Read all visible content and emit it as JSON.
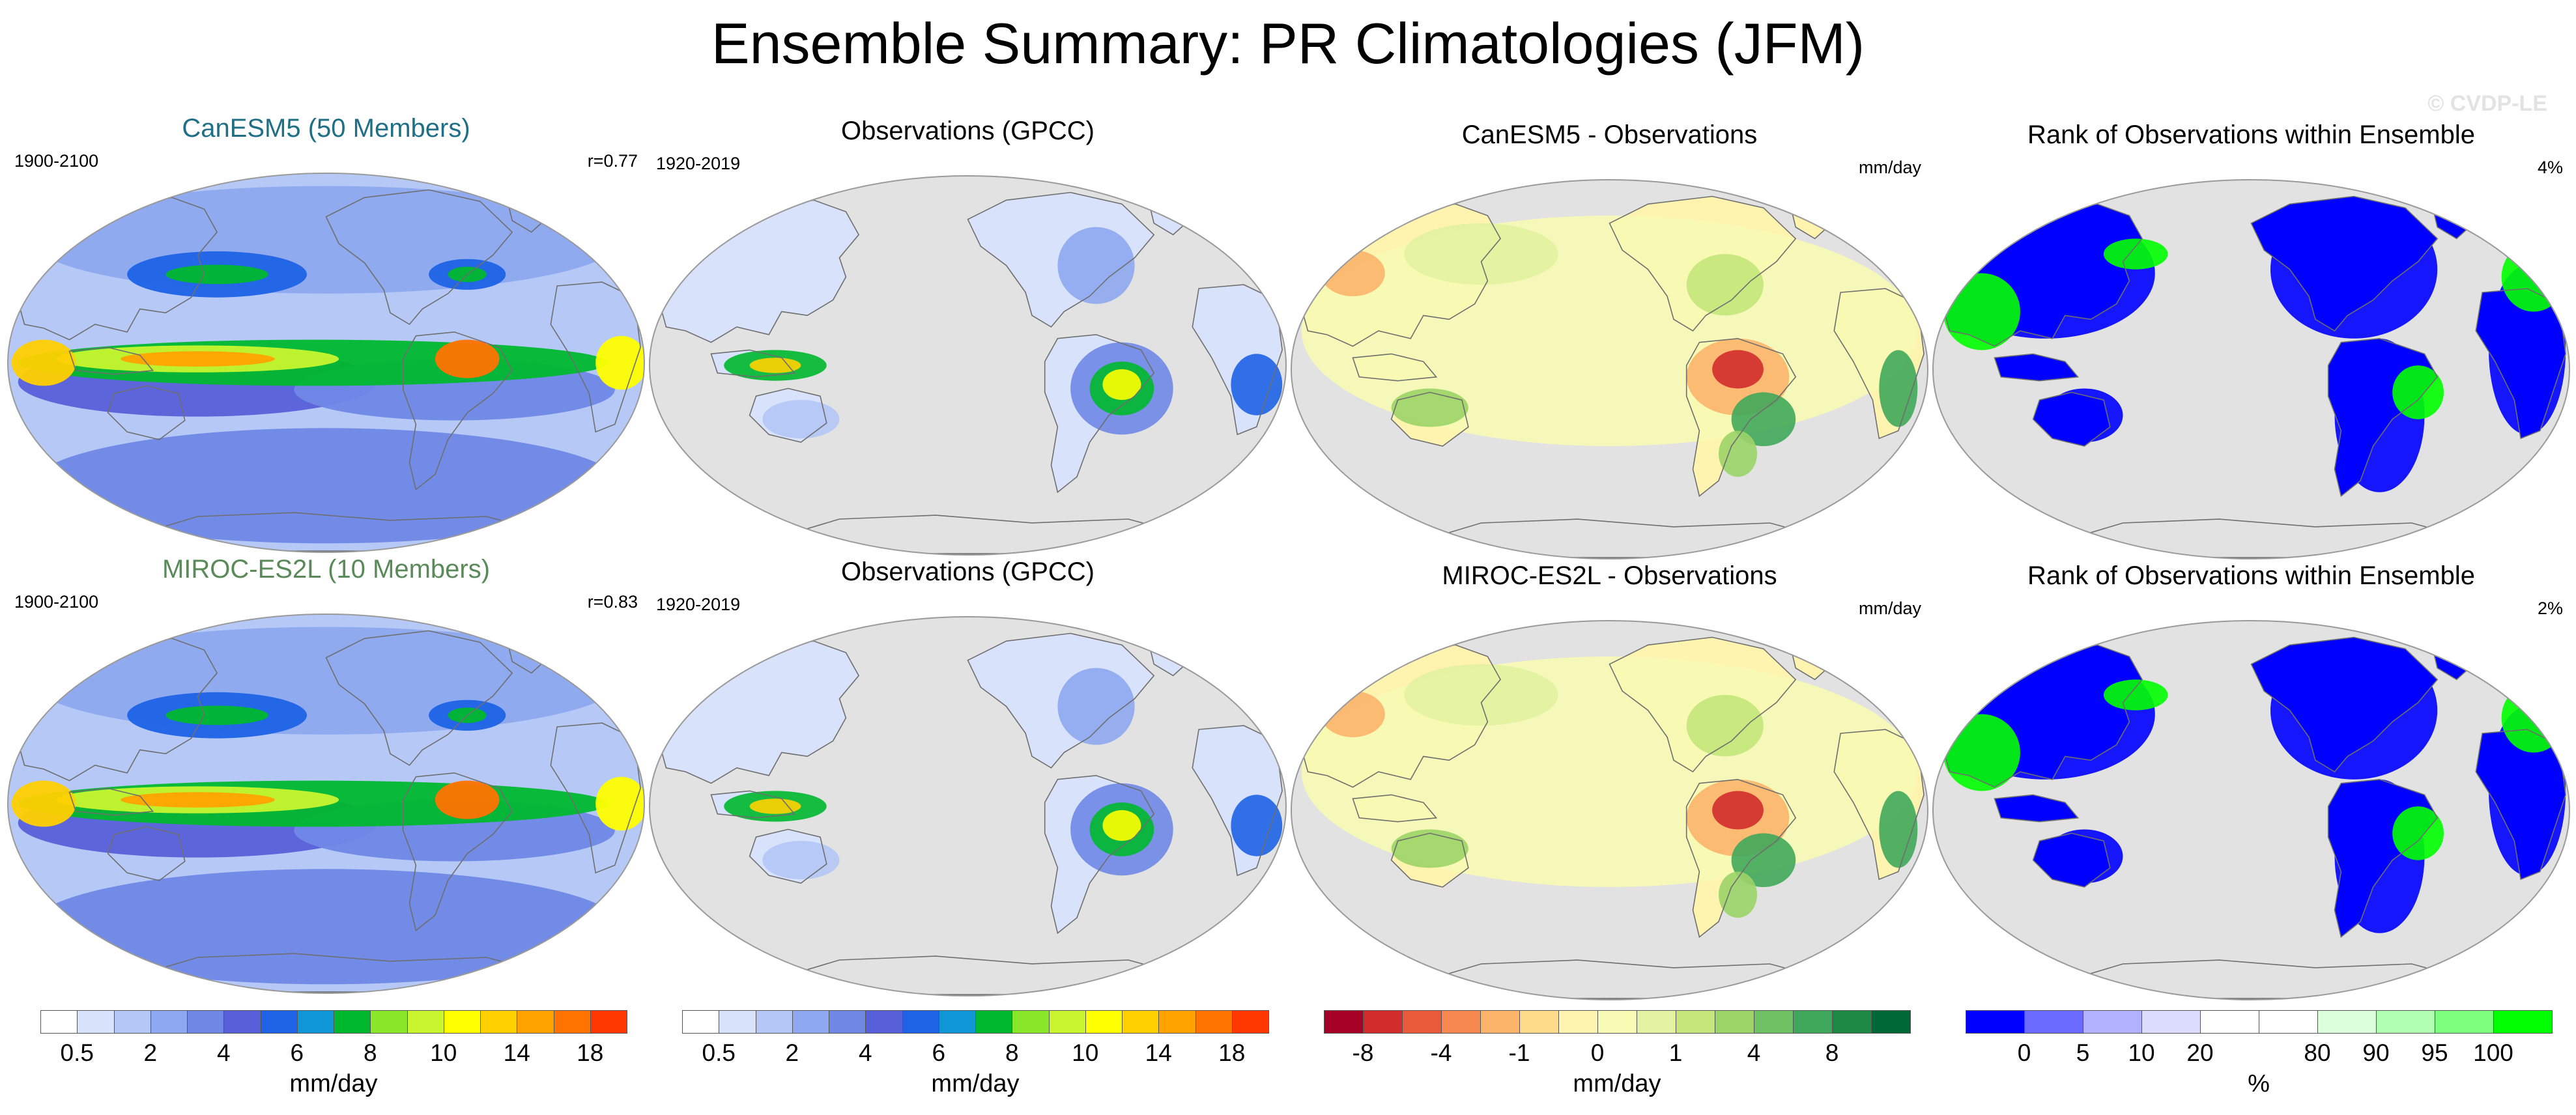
{
  "title": "Ensemble Summary: PR Climatologies (JFM)",
  "watermark": "© CVDP-LE",
  "colors": {
    "land": "#e2e2e2",
    "coast": "#6e6e6e",
    "precip": [
      "#ffffff",
      "#d8e2fb",
      "#b4c7f6",
      "#8ea9ef",
      "#6f88e6",
      "#5760d8",
      "#1e63e6",
      "#0f96d7",
      "#00b82e",
      "#8ae629",
      "#c8f52e",
      "#ffff00",
      "#ffd000",
      "#ffa200",
      "#ff7300",
      "#ff3800"
    ],
    "diff": [
      "#a50026",
      "#d02c2c",
      "#e95a3b",
      "#f6874f",
      "#fbb46a",
      "#fdd98a",
      "#fff3b0",
      "#f7fbb4",
      "#e2f2a0",
      "#c3e57a",
      "#9bd467",
      "#6fc164",
      "#40a85a",
      "#1c8844",
      "#006837"
    ],
    "rank": [
      "#0000ff",
      "#6a6aff",
      "#b1b1ff",
      "#dcdcff",
      "#ffffff",
      "#ffffff",
      "#dcffdc",
      "#b1ffb1",
      "#7dff7d",
      "#00ff00"
    ]
  },
  "panels": [
    {
      "title": "CanESM5 (50 Members)",
      "title_color": "#1f6f86",
      "years": "1900-2100",
      "corner": "r=0.77",
      "kind": "model"
    },
    {
      "title": "Observations (GPCC)",
      "title_color": "#000000",
      "years": "1920-2019",
      "corner": "",
      "kind": "obs"
    },
    {
      "title": "CanESM5 - Observations",
      "title_color": "#000000",
      "years": "",
      "corner": "mm/day",
      "kind": "diff"
    },
    {
      "title": "Rank of Observations within Ensemble",
      "title_color": "#000000",
      "years": "",
      "corner": "4%",
      "kind": "rank"
    },
    {
      "title": "MIROC-ES2L (10 Members)",
      "title_color": "#5a8a5a",
      "years": "1900-2100",
      "corner": "r=0.83",
      "kind": "model"
    },
    {
      "title": "Observations (GPCC)",
      "title_color": "#000000",
      "years": "1920-2019",
      "corner": "",
      "kind": "obs"
    },
    {
      "title": "MIROC-ES2L - Observations",
      "title_color": "#000000",
      "years": "",
      "corner": "mm/day",
      "kind": "diff"
    },
    {
      "title": "Rank of Observations within Ensemble",
      "title_color": "#000000",
      "years": "",
      "corner": "2%",
      "kind": "rank"
    }
  ],
  "colorbars": [
    {
      "palette": "precip",
      "ticks": [
        "0.5",
        "2",
        "4",
        "6",
        "8",
        "10",
        "14",
        "18"
      ],
      "tick_after_box": [
        1,
        3,
        5,
        7,
        9,
        11,
        13,
        15
      ],
      "label": "mm/day"
    },
    {
      "palette": "precip",
      "ticks": [
        "0.5",
        "2",
        "4",
        "6",
        "8",
        "10",
        "14",
        "18"
      ],
      "tick_after_box": [
        1,
        3,
        5,
        7,
        9,
        11,
        13,
        15
      ],
      "label": "mm/day"
    },
    {
      "palette": "diff",
      "ticks": [
        "-8",
        "-4",
        "-1",
        "0",
        "1",
        "4",
        "8"
      ],
      "tick_after_box": [
        1,
        3,
        5,
        7,
        9,
        11,
        13
      ],
      "label": "mm/day"
    },
    {
      "palette": "rank",
      "ticks": [
        "0",
        "5",
        "10",
        "20",
        "80",
        "90",
        "95",
        "100"
      ],
      "tick_after_box": [
        1,
        2,
        3,
        4,
        6,
        7,
        8,
        9
      ],
      "label": "%"
    }
  ],
  "chart_data": [
    {
      "type": "heatmap",
      "title": "Ensemble Summary: PR Climatologies (JFM)",
      "subplots": [
        {
          "title": "CanESM5 (50 Members)",
          "period": "1900-2100",
          "pattern_correlation": 0.77,
          "variable": "precipitation",
          "units": "mm/day",
          "levels": [
            0.5,
            1,
            2,
            3,
            4,
            5,
            6,
            7,
            8,
            9,
            10,
            12,
            14,
            16,
            18
          ]
        },
        {
          "title": "Observations (GPCC)",
          "period": "1920-2019",
          "variable": "precipitation",
          "units": "mm/day",
          "levels": [
            0.5,
            1,
            2,
            3,
            4,
            5,
            6,
            7,
            8,
            9,
            10,
            12,
            14,
            16,
            18
          ]
        },
        {
          "title": "CanESM5 - Observations",
          "variable": "precipitation difference",
          "units": "mm/day",
          "levels": [
            -8,
            -6,
            -4,
            -2,
            -1,
            -0.5,
            0,
            0.5,
            1,
            2,
            4,
            6,
            8
          ]
        },
        {
          "title": "Rank of Observations within Ensemble",
          "summary_value": "4%",
          "units": "%",
          "levels": [
            0,
            5,
            10,
            20,
            80,
            90,
            95,
            100
          ]
        },
        {
          "title": "MIROC-ES2L (10 Members)",
          "period": "1900-2100",
          "pattern_correlation": 0.83,
          "variable": "precipitation",
          "units": "mm/day",
          "levels": [
            0.5,
            1,
            2,
            3,
            4,
            5,
            6,
            7,
            8,
            9,
            10,
            12,
            14,
            16,
            18
          ]
        },
        {
          "title": "Observations (GPCC)",
          "period": "1920-2019",
          "variable": "precipitation",
          "units": "mm/day",
          "levels": [
            0.5,
            1,
            2,
            3,
            4,
            5,
            6,
            7,
            8,
            9,
            10,
            12,
            14,
            16,
            18
          ]
        },
        {
          "title": "MIROC-ES2L - Observations",
          "variable": "precipitation difference",
          "units": "mm/day",
          "levels": [
            -8,
            -6,
            -4,
            -2,
            -1,
            -0.5,
            0,
            0.5,
            1,
            2,
            4,
            6,
            8
          ]
        },
        {
          "title": "Rank of Observations within Ensemble",
          "summary_value": "2%",
          "units": "%",
          "levels": [
            0,
            5,
            10,
            20,
            80,
            90,
            95,
            100
          ]
        }
      ],
      "colorbars": [
        {
          "tick_labels": [
            "0.5",
            "2",
            "4",
            "6",
            "8",
            "10",
            "14",
            "18"
          ],
          "label": "mm/day"
        },
        {
          "tick_labels": [
            "0.5",
            "2",
            "4",
            "6",
            "8",
            "10",
            "14",
            "18"
          ],
          "label": "mm/day"
        },
        {
          "tick_labels": [
            "-8",
            "-4",
            "-1",
            "0",
            "1",
            "4",
            "8"
          ],
          "label": "mm/day"
        },
        {
          "tick_labels": [
            "0",
            "5",
            "10",
            "20",
            "80",
            "90",
            "95",
            "100"
          ],
          "label": "%"
        }
      ]
    }
  ]
}
